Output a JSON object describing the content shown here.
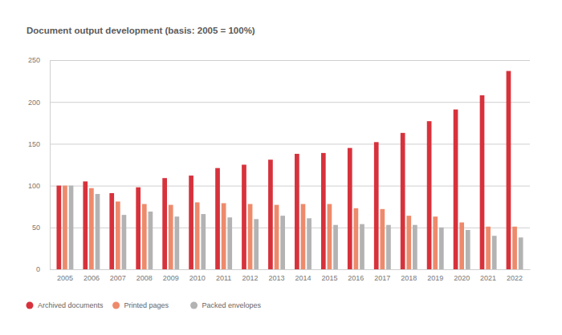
{
  "chart_data": {
    "type": "bar",
    "title": "Document output development (basis: 2005 = 100%)",
    "categories": [
      "2005",
      "2006",
      "2007",
      "2008",
      "2009",
      "2010",
      "2011",
      "2012",
      "2013",
      "2014",
      "2015",
      "2016",
      "2017",
      "2018",
      "2019",
      "2020",
      "2021",
      "2022"
    ],
    "series": [
      {
        "name": "Archived documents",
        "color": "#d7323c",
        "values": [
          100,
          105,
          91,
          98,
          109,
          112,
          121,
          125,
          131,
          138,
          139,
          145,
          152,
          163,
          177,
          191,
          208,
          237
        ]
      },
      {
        "name": "Printed pages",
        "color": "#ee8a6c",
        "values": [
          100,
          97,
          81,
          78,
          77,
          80,
          79,
          78,
          77,
          78,
          78,
          73,
          72,
          64,
          63,
          56,
          51,
          51
        ]
      },
      {
        "name": "Packed envelopes",
        "color": "#b3b3b3",
        "values": [
          100,
          90,
          65,
          69,
          63,
          66,
          62,
          60,
          64,
          61,
          53,
          54,
          53,
          53,
          50,
          47,
          40,
          38
        ]
      }
    ],
    "ylim": [
      0,
      250
    ],
    "yticks": [
      0,
      50,
      100,
      150,
      200,
      250
    ],
    "grid": true,
    "legend": "bottom-left"
  }
}
